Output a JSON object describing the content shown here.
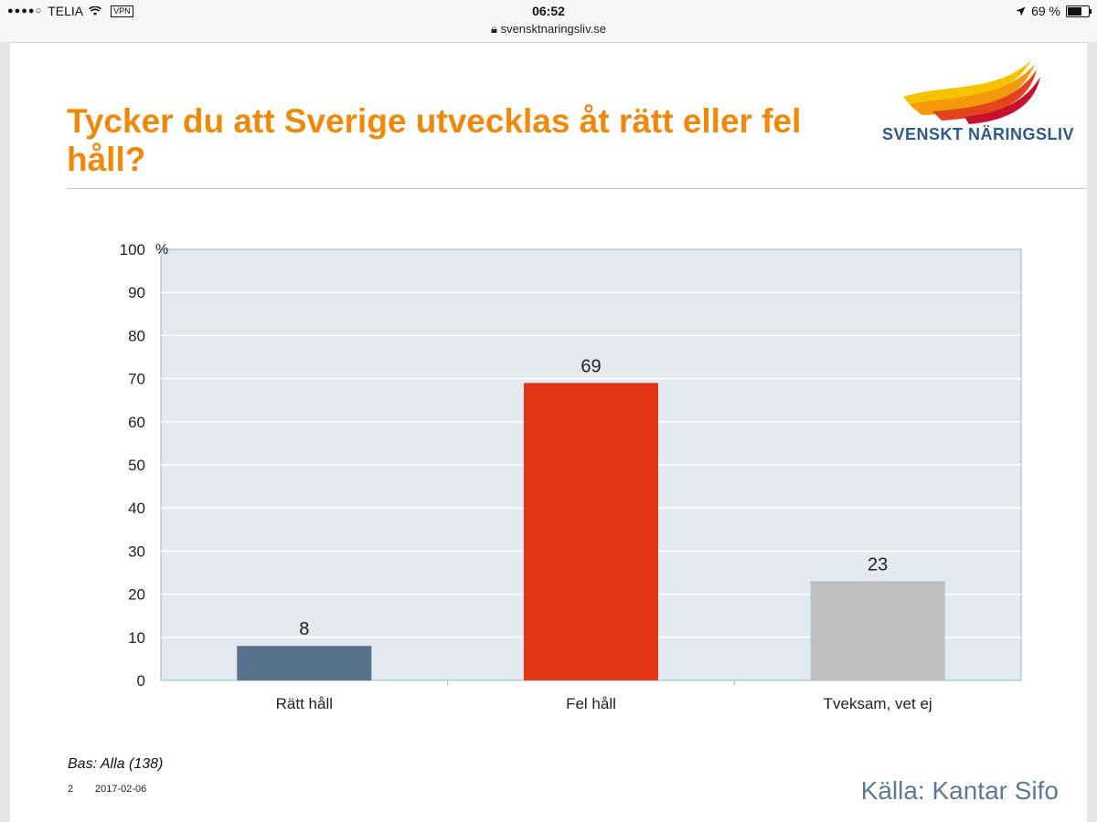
{
  "status_bar": {
    "signal": "●●●●○",
    "carrier": "TELIA",
    "vpn": "VPN",
    "time": "06:52",
    "battery": "69 %",
    "url": "svensktnaringsliv.se"
  },
  "slide": {
    "title": "Tycker du att Sverige utvecklas åt rätt eller fel håll?",
    "logo_text": "SVENSKT NÄRINGSLIV",
    "base_note": "Bas: Alla (138)",
    "page_number": "2",
    "date": "2017-02-06",
    "source": "Källa: Kantar Sifo"
  },
  "colors": {
    "title": "#f0890a",
    "plot_bg": "#e4e8ef",
    "bar_blue": "#56728c",
    "bar_red": "#e23516",
    "bar_gray": "#bfbfbf"
  },
  "chart_data": {
    "type": "bar",
    "title": "Tycker du att Sverige utvecklas åt rätt eller fel håll?",
    "categories": [
      "Rätt håll",
      "Fel håll",
      "Tveksam, vet ej"
    ],
    "values": [
      8,
      69,
      23
    ],
    "bar_colors": [
      "#56728c",
      "#e23516",
      "#bfbfbf"
    ],
    "ylabel": "%",
    "xlabel": "",
    "ylim": [
      0,
      100
    ],
    "yticks": [
      0,
      10,
      20,
      30,
      40,
      50,
      60,
      70,
      80,
      90,
      100
    ],
    "grid": true
  }
}
